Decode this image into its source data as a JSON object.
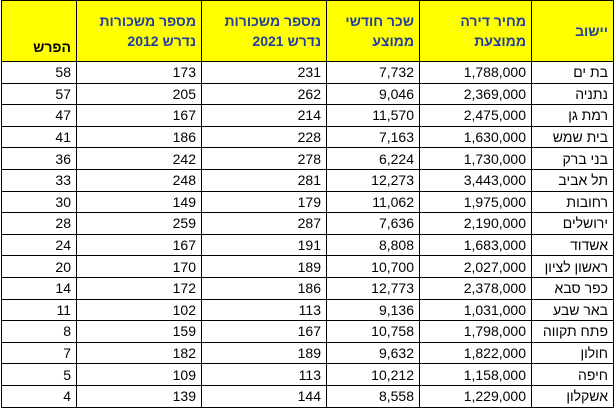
{
  "table": {
    "header": [
      [
        "יישוב"
      ],
      [
        "מחיר דירה",
        "ממוצעת"
      ],
      [
        "שכר חודשי",
        "ממוצע"
      ],
      [
        "מספר משכורות",
        "נדרש 2021"
      ],
      [
        "מספר משכורות",
        "נדרש 2012"
      ],
      [
        "הפרש"
      ]
    ],
    "rows": [
      [
        "בת ים",
        "1,788,000",
        "7,732",
        "231",
        "173",
        "58"
      ],
      [
        "נתניה",
        "2,369,000",
        "9,046",
        "262",
        "205",
        "57"
      ],
      [
        "רמת גן",
        "2,475,000",
        "11,570",
        "214",
        "167",
        "47"
      ],
      [
        "בית שמש",
        "1,630,000",
        "7,163",
        "228",
        "186",
        "41"
      ],
      [
        "בני ברק",
        "1,730,000",
        "6,224",
        "278",
        "242",
        "36"
      ],
      [
        "תל אביב",
        "3,443,000",
        "12,273",
        "281",
        "248",
        "33"
      ],
      [
        "רחובות",
        "1,975,000",
        "11,062",
        "179",
        "149",
        "30"
      ],
      [
        "ירושלים",
        "2,190,000",
        "7,636",
        "287",
        "259",
        "28"
      ],
      [
        "אשדוד",
        "1,683,000",
        "8,808",
        "191",
        "167",
        "24"
      ],
      [
        "ראשון לציון",
        "2,027,000",
        "10,700",
        "189",
        "170",
        "20"
      ],
      [
        "כפר סבא",
        "2,378,000",
        "12,773",
        "186",
        "172",
        "14"
      ],
      [
        "באר שבע",
        "1,031,000",
        "9,136",
        "113",
        "102",
        "11"
      ],
      [
        "פתח תקווה",
        "1,798,000",
        "10,758",
        "167",
        "159",
        "8"
      ],
      [
        "חולון",
        "1,822,000",
        "9,632",
        "189",
        "182",
        "7"
      ],
      [
        "חיפה",
        "1,158,000",
        "10,212",
        "113",
        "109",
        "5"
      ],
      [
        "אשקלון",
        "1,229,000",
        "8,558",
        "144",
        "139",
        "4"
      ]
    ]
  }
}
